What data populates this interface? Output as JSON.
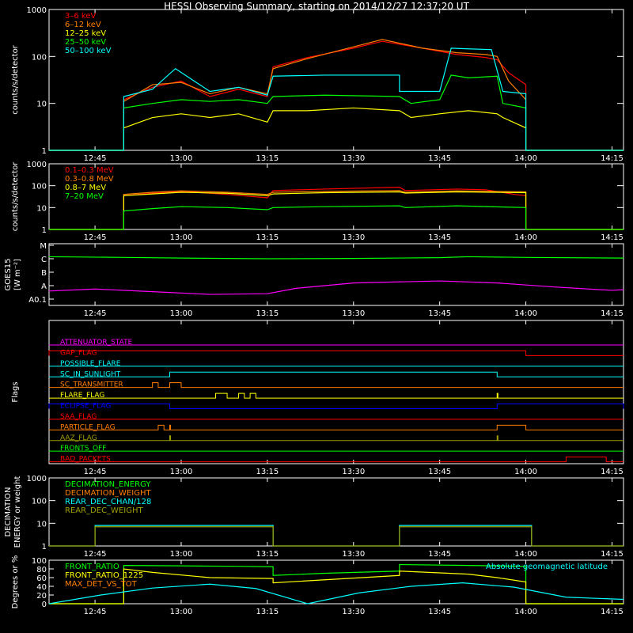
{
  "title": "HESSI Observing Summary, starting on 2014/12/27 12:37:20 UT",
  "colors": {
    "background": "#000000",
    "axes": "#ffffff",
    "red": "#ff0000",
    "orange": "#ff7f00",
    "yellow": "#ffff00",
    "green": "#00ff00",
    "cyan": "#00ffff",
    "magenta": "#ff00ff",
    "blue": "#0000ff",
    "olive": "#a0a000"
  },
  "chart_data": [
    {
      "id": "counts-low",
      "type": "line",
      "ylabel": "counts/s/detector",
      "yscale": "log",
      "ylim": [
        1,
        1000
      ],
      "yticks": [
        "1",
        "10",
        "100",
        "1000"
      ],
      "xlim": [
        "12:37",
        "14:17"
      ],
      "xticks": [
        "12:45",
        "13:00",
        "13:15",
        "13:30",
        "13:45",
        "14:00",
        "14:15"
      ],
      "legend": "top-left",
      "series": [
        {
          "name": "3–6 keV",
          "color": "#ff0000",
          "x": [
            "12:37",
            "12:50",
            "12:50",
            "12:55",
            "13:00",
            "13:05",
            "13:10",
            "13:15",
            "13:16",
            "13:22",
            "13:30",
            "13:35",
            "13:42",
            "13:48",
            "13:53",
            "13:55",
            "13:57",
            "14:00",
            "14:00",
            "14:17"
          ],
          "y": [
            1,
            1,
            12,
            22,
            30,
            14,
            20,
            14,
            60,
            95,
            150,
            210,
            150,
            110,
            95,
            85,
            45,
            25,
            1,
            1
          ]
        },
        {
          "name": "6–12 keV",
          "color": "#ff7f00",
          "x": [
            "12:37",
            "12:50",
            "12:50",
            "12:55",
            "13:00",
            "13:05",
            "13:10",
            "13:15",
            "13:16",
            "13:22",
            "13:30",
            "13:35",
            "13:42",
            "13:48",
            "13:53",
            "13:55",
            "13:57",
            "14:00",
            "14:00",
            "14:17"
          ],
          "y": [
            1,
            1,
            11,
            25,
            28,
            16,
            22,
            16,
            55,
            90,
            160,
            230,
            150,
            120,
            110,
            100,
            30,
            12,
            1,
            1
          ]
        },
        {
          "name": "12–25 keV",
          "color": "#ffff00",
          "x": [
            "12:37",
            "12:50",
            "12:50",
            "12:55",
            "13:00",
            "13:05",
            "13:10",
            "13:15",
            "13:16",
            "13:22",
            "13:30",
            "13:38",
            "13:40",
            "13:45",
            "13:50",
            "13:55",
            "13:56",
            "14:00",
            "14:00",
            "14:17"
          ],
          "y": [
            1,
            1,
            3,
            5,
            6,
            5,
            6,
            4,
            7,
            7,
            8,
            7,
            5,
            6,
            7,
            6,
            5,
            3,
            1,
            1
          ]
        },
        {
          "name": "25–50 keV",
          "color": "#00ff00",
          "x": [
            "12:37",
            "12:50",
            "12:50",
            "12:55",
            "13:00",
            "13:05",
            "13:10",
            "13:15",
            "13:16",
            "13:25",
            "13:38",
            "13:40",
            "13:45",
            "13:47",
            "13:50",
            "13:55",
            "13:56",
            "14:00",
            "14:00",
            "14:17"
          ],
          "y": [
            1,
            1,
            8,
            10,
            12,
            11,
            12,
            10,
            14,
            15,
            14,
            10,
            12,
            40,
            35,
            38,
            10,
            8,
            1,
            1
          ]
        },
        {
          "name": "50–100 keV",
          "color": "#00ffff",
          "x": [
            "12:37",
            "12:50",
            "12:50",
            "12:55",
            "12:59",
            "13:05",
            "13:10",
            "13:15",
            "13:16",
            "13:25",
            "13:38",
            "13:38",
            "13:45",
            "13:47",
            "13:50",
            "13:54",
            "13:56",
            "14:00",
            "14:00",
            "14:17"
          ],
          "y": [
            1,
            1,
            14,
            20,
            55,
            18,
            22,
            15,
            38,
            40,
            40,
            18,
            18,
            150,
            145,
            140,
            18,
            16,
            1,
            1
          ]
        }
      ]
    },
    {
      "id": "counts-high",
      "type": "line",
      "ylabel": "counts/s/detector",
      "yscale": "log",
      "ylim": [
        1,
        1000
      ],
      "yticks": [
        "1",
        "10",
        "100",
        "1000"
      ],
      "xlim": [
        "12:37",
        "14:17"
      ],
      "xticks": [
        "12:45",
        "13:00",
        "13:15",
        "13:30",
        "13:45",
        "14:00",
        "14:15"
      ],
      "legend": "top-left",
      "series": [
        {
          "name": "0.1–0.3 MeV",
          "color": "#ff0000",
          "x": [
            "12:37",
            "12:50",
            "12:50",
            "12:55",
            "13:00",
            "13:08",
            "13:15",
            "13:16",
            "13:25",
            "13:38",
            "13:39",
            "13:48",
            "13:53",
            "13:58",
            "14:00",
            "14:00",
            "14:17"
          ],
          "y": [
            1,
            1,
            35,
            45,
            55,
            40,
            28,
            60,
            70,
            85,
            60,
            70,
            65,
            40,
            35,
            1,
            1
          ]
        },
        {
          "name": "0.3–0.8 MeV",
          "color": "#ff7f00",
          "x": [
            "12:37",
            "12:50",
            "12:50",
            "12:55",
            "13:00",
            "13:08",
            "13:15",
            "13:16",
            "13:25",
            "13:38",
            "13:39",
            "13:48",
            "14:00",
            "14:00",
            "14:17"
          ],
          "y": [
            1,
            1,
            40,
            50,
            58,
            50,
            40,
            50,
            55,
            60,
            50,
            58,
            52,
            1,
            1
          ]
        },
        {
          "name": "0.8–7 MeV",
          "color": "#ffff00",
          "x": [
            "12:37",
            "12:50",
            "12:50",
            "12:55",
            "13:00",
            "13:08",
            "13:15",
            "13:16",
            "13:25",
            "13:38",
            "13:39",
            "13:48",
            "14:00",
            "14:00",
            "14:17"
          ],
          "y": [
            1,
            1,
            35,
            42,
            50,
            45,
            35,
            42,
            48,
            52,
            46,
            52,
            48,
            1,
            1
          ]
        },
        {
          "name": "7–20 MeV",
          "color": "#00ff00",
          "x": [
            "12:37",
            "12:50",
            "12:50",
            "12:55",
            "13:00",
            "13:08",
            "13:15",
            "13:16",
            "13:25",
            "13:38",
            "13:39",
            "13:48",
            "14:00",
            "14:00",
            "14:17"
          ],
          "y": [
            1,
            1,
            7,
            9,
            11,
            10,
            8,
            10,
            11,
            12,
            10,
            12,
            10,
            1,
            1
          ]
        }
      ]
    },
    {
      "id": "goes",
      "type": "line",
      "ylabel": "GOES15",
      "ylabel2": "[W m⁻²]",
      "ylevels": [
        "A0.1",
        "A",
        "B",
        "C",
        "M"
      ],
      "xlim": [
        "12:37",
        "14:17"
      ],
      "xticks": [
        "12:45",
        "13:00",
        "13:15",
        "13:30",
        "13:45",
        "14:00",
        "14:15"
      ],
      "series": [
        {
          "name": "green",
          "color": "#00ff00",
          "x": [
            "12:37",
            "12:50",
            "13:00",
            "13:15",
            "13:30",
            "13:45",
            "13:50",
            "14:00",
            "14:17"
          ],
          "y": [
            3.15,
            3.1,
            3.05,
            3.0,
            3.02,
            3.08,
            3.15,
            3.1,
            3.05
          ]
        },
        {
          "name": "magenta",
          "color": "#ff00ff",
          "x": [
            "12:37",
            "12:45",
            "12:55",
            "13:05",
            "13:15",
            "13:20",
            "13:30",
            "13:45",
            "13:55",
            "14:05",
            "14:15",
            "14:17"
          ],
          "y": [
            0.6,
            0.75,
            0.55,
            0.35,
            0.4,
            0.8,
            1.2,
            1.35,
            1.2,
            0.9,
            0.65,
            0.7
          ]
        }
      ]
    },
    {
      "id": "flags",
      "type": "line",
      "ylabel": "Flags",
      "xlim": [
        "12:37",
        "14:17"
      ],
      "xticks": [
        "12:45",
        "13:00",
        "13:15",
        "13:30",
        "13:45",
        "14:00",
        "14:15"
      ],
      "flags": [
        {
          "name": "ATTENUATOR_STATE",
          "color": "#ff00ff",
          "on": []
        },
        {
          "name": "GAP_FLAG",
          "color": "#ff0000",
          "on": [
            [
              "12:37",
              "14:00"
            ]
          ]
        },
        {
          "name": "POSSIBLE_FLARE",
          "color": "#00ffff",
          "on": []
        },
        {
          "name": "SC_IN_SUNLIGHT",
          "color": "#00ffff",
          "on": [
            [
              "12:58",
              "13:55"
            ]
          ]
        },
        {
          "name": "SC_TRANSMITTER",
          "color": "#ff7f00",
          "on": [
            [
              "12:55",
              "12:56"
            ],
            [
              "12:58",
              "13:00"
            ]
          ]
        },
        {
          "name": "FLARE_FLAG",
          "color": "#ffff00",
          "on": [
            [
              "13:06",
              "13:08"
            ],
            [
              "13:10",
              "13:11"
            ],
            [
              "13:12",
              "13:13"
            ],
            [
              "13:55",
              "13:55"
            ]
          ]
        },
        {
          "name": "ECLIPSE_FLAG",
          "color": "#0000ff",
          "on": [
            [
              "12:37",
              "12:58"
            ],
            [
              "13:55",
              "14:17"
            ]
          ]
        },
        {
          "name": "SAA_FLAG",
          "color": "#ff0000",
          "on": []
        },
        {
          "name": "PARTICLE_FLAG",
          "color": "#ff7f00",
          "on": [
            [
              "12:56",
              "12:57"
            ],
            [
              "12:58",
              "12:58"
            ],
            [
              "13:55",
              "14:00"
            ]
          ]
        },
        {
          "name": "AAZ_FLAG",
          "color": "#a0a000",
          "on": [
            [
              "12:58",
              "12:58"
            ],
            [
              "13:55",
              "13:55"
            ]
          ]
        },
        {
          "name": "FRONTS_OFF",
          "color": "#00ff00",
          "on": []
        },
        {
          "name": "BAD_PACKETS",
          "color": "#ff0000",
          "on": [
            [
              "14:07",
              "14:14"
            ]
          ]
        }
      ]
    },
    {
      "id": "decimation",
      "type": "line",
      "ylabel": "DECIMATION",
      "ylabel2": "ENERGY or weight",
      "yscale": "log",
      "ylim": [
        1,
        1000
      ],
      "yticks": [
        "1",
        "10",
        "100",
        "1000"
      ],
      "xlim": [
        "12:37",
        "14:17"
      ],
      "xticks": [
        "12:45",
        "13:00",
        "13:15",
        "13:30",
        "13:45",
        "14:00",
        "14:15"
      ],
      "legend": "top-left",
      "series": [
        {
          "name": "DECIMATION_ENERGY",
          "color": "#00ff00",
          "x": [],
          "y": []
        },
        {
          "name": "DECIMATION_WEIGHT",
          "color": "#ff7f00",
          "x": [],
          "y": []
        },
        {
          "name": "REAR_DEC_CHAN/128",
          "color": "#00ffff",
          "x": [
            "12:37",
            "12:45",
            "12:45",
            "13:16",
            "13:16",
            "13:38",
            "13:38",
            "14:01",
            "14:01",
            "14:17"
          ],
          "y": [
            1,
            1,
            8,
            8,
            1,
            1,
            8,
            8,
            1,
            1
          ]
        },
        {
          "name": "REAR_DEC_WEIGHT",
          "color": "#a0a000",
          "x": [
            "12:37",
            "12:45",
            "12:45",
            "13:16",
            "13:16",
            "13:38",
            "13:38",
            "14:01",
            "14:01",
            "14:17"
          ],
          "y": [
            1,
            1,
            7,
            7,
            1,
            1,
            7,
            7,
            1,
            1
          ]
        }
      ]
    },
    {
      "id": "ratios",
      "type": "line",
      "ylabel": "Degrees or %",
      "ylim": [
        0,
        100
      ],
      "yticks": [
        "0",
        "20",
        "40",
        "60",
        "80",
        "100"
      ],
      "xlim": [
        "12:37",
        "14:17"
      ],
      "xticks": [
        "12:45",
        "13:00",
        "13:15",
        "13:30",
        "13:45",
        "14:00",
        "14:15"
      ],
      "legend": "top-left",
      "annotation": "Absolute geomagnetic latitude",
      "series": [
        {
          "name": "FRONT_RATIO",
          "color": "#00ff00",
          "x": [
            "12:37",
            "12:50",
            "12:50",
            "13:00",
            "13:10",
            "13:16",
            "13:16",
            "13:25",
            "13:38",
            "13:38",
            "13:50",
            "14:00",
            "14:00",
            "14:17"
          ],
          "y": [
            0,
            0,
            88,
            87,
            86,
            85,
            65,
            70,
            75,
            90,
            88,
            86,
            0,
            0
          ]
        },
        {
          "name": "FRONT_RATIO_1225",
          "color": "#ffff00",
          "x": [
            "12:37",
            "12:50",
            "12:50",
            "12:55",
            "13:05",
            "13:16",
            "13:16",
            "13:25",
            "13:38",
            "13:38",
            "13:50",
            "13:55",
            "14:00",
            "14:00",
            "14:17"
          ],
          "y": [
            0,
            0,
            80,
            72,
            60,
            58,
            48,
            55,
            65,
            75,
            68,
            60,
            50,
            0,
            0
          ]
        },
        {
          "name": "MAX_DET_VS_TOT",
          "color": "#ff7f00",
          "x": [],
          "y": []
        },
        {
          "name": "Absolute geomagnetic latitude",
          "color": "#00ffff",
          "x": [
            "12:37",
            "12:46",
            "12:55",
            "13:05",
            "13:13",
            "13:22",
            "13:31",
            "13:40",
            "13:49",
            "13:58",
            "14:07",
            "14:17"
          ],
          "y": [
            0,
            20,
            36,
            45,
            35,
            0,
            25,
            40,
            48,
            38,
            15,
            10
          ]
        }
      ]
    }
  ]
}
